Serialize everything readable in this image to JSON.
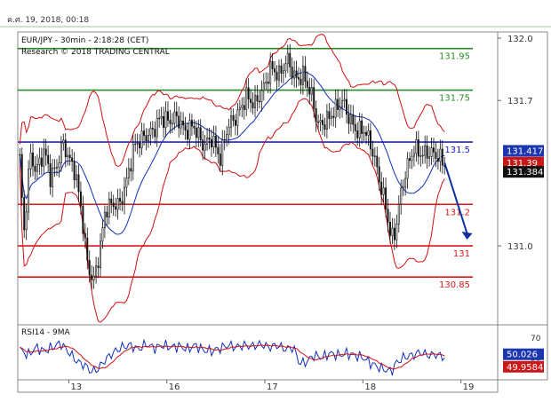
{
  "timestamp": "ค.ศ. 19, 2018, 00:18",
  "chart_data": [
    {
      "type": "candlestick",
      "title": "EUR/JPY - 30min - 2:18:28 (CET)",
      "subtitle": "Research © 2018 TRADING CENTRAL",
      "yticks": [
        "132.0",
        "131.7",
        "131.0"
      ],
      "ylim": [
        130.62,
        132.03
      ],
      "xticks": [
        {
          "label": "13",
          "x": 0
        },
        {
          "label": "16",
          "x": 48
        },
        {
          "label": "17",
          "x": 96
        },
        {
          "label": "18",
          "x": 144
        },
        {
          "label": "19",
          "x": 192
        }
      ],
      "xlim": [
        -25,
        210
      ],
      "levels": [
        {
          "label": "131.95",
          "value": 131.95,
          "color": "#2a8a2a"
        },
        {
          "label": "131.75",
          "value": 131.75,
          "color": "#2a8a2a"
        },
        {
          "label": "131.5",
          "value": 131.5,
          "color": "#2020c8"
        },
        {
          "label": "131.2",
          "value": 131.2,
          "color": "#d81818"
        },
        {
          "label": "131",
          "value": 131.0,
          "color": "#d81818"
        },
        {
          "label": "130.85",
          "value": 130.85,
          "color": "#d81818"
        }
      ],
      "price_tags": [
        {
          "label": "131.417",
          "value": 131.417,
          "color": "#1c36b0"
        },
        {
          "label": "131.39",
          "value": 131.39,
          "color": "#c81818"
        },
        {
          "label": "131.384",
          "value": 131.384,
          "color": "#111111"
        }
      ],
      "forecast_arrow": {
        "from": [
          184,
          131.4
        ],
        "to": [
          195,
          131.03
        ],
        "color": "#1030a0"
      },
      "anchors": [
        [
          -24,
          131.42
        ],
        [
          -22,
          131.05
        ],
        [
          -19,
          131.44
        ],
        [
          -16,
          131.36
        ],
        [
          -12,
          131.46
        ],
        [
          -9,
          131.33
        ],
        [
          -6,
          131.38
        ],
        [
          -3,
          131.5
        ],
        [
          0,
          131.42
        ],
        [
          3,
          131.36
        ],
        [
          6,
          131.18
        ],
        [
          9,
          130.92
        ],
        [
          12,
          130.82
        ],
        [
          15,
          130.97
        ],
        [
          18,
          131.18
        ],
        [
          21,
          131.2
        ],
        [
          25,
          131.2
        ],
        [
          28,
          131.3
        ],
        [
          32,
          131.48
        ],
        [
          36,
          131.52
        ],
        [
          41,
          131.55
        ],
        [
          45,
          131.62
        ],
        [
          49,
          131.6
        ],
        [
          53,
          131.62
        ],
        [
          57,
          131.55
        ],
        [
          61,
          131.58
        ],
        [
          66,
          131.48
        ],
        [
          70,
          131.52
        ],
        [
          74,
          131.42
        ],
        [
          78,
          131.58
        ],
        [
          82,
          131.62
        ],
        [
          87,
          131.72
        ],
        [
          91,
          131.68
        ],
        [
          95,
          131.75
        ],
        [
          99,
          131.86
        ],
        [
          103,
          131.82
        ],
        [
          107,
          131.9
        ],
        [
          111,
          131.8
        ],
        [
          115,
          131.82
        ],
        [
          119,
          131.72
        ],
        [
          122,
          131.58
        ],
        [
          126,
          131.6
        ],
        [
          130,
          131.65
        ],
        [
          134,
          131.7
        ],
        [
          137,
          131.62
        ],
        [
          141,
          131.55
        ],
        [
          145,
          131.56
        ],
        [
          149,
          131.45
        ],
        [
          152,
          131.32
        ],
        [
          155,
          131.2
        ],
        [
          157,
          131.08
        ],
        [
          159,
          131.02
        ],
        [
          162,
          131.22
        ],
        [
          165,
          131.36
        ],
        [
          169,
          131.47
        ],
        [
          173,
          131.44
        ],
        [
          177,
          131.45
        ],
        [
          181,
          131.43
        ],
        [
          185,
          131.38
        ]
      ],
      "rsi": {
        "title": "RSI14 - 9MA",
        "yticks": [
          "70",
          "50"
        ],
        "ylim": [
          28,
          82
        ],
        "tags": [
          {
            "label": "50.026",
            "value": 50.026,
            "color": "#1c36b0"
          },
          {
            "label": "49.9584",
            "value": 49.9584,
            "color": "#c81818"
          }
        ],
        "anchors": [
          [
            -24,
            58
          ],
          [
            -20,
            52
          ],
          [
            -16,
            60
          ],
          [
            -12,
            56
          ],
          [
            -8,
            60
          ],
          [
            -4,
            64
          ],
          [
            0,
            55
          ],
          [
            4,
            46
          ],
          [
            8,
            42
          ],
          [
            11,
            36
          ],
          [
            14,
            38
          ],
          [
            18,
            48
          ],
          [
            22,
            55
          ],
          [
            26,
            60
          ],
          [
            30,
            62
          ],
          [
            34,
            58
          ],
          [
            38,
            63
          ],
          [
            42,
            59
          ],
          [
            46,
            62
          ],
          [
            50,
            60
          ],
          [
            54,
            61
          ],
          [
            58,
            58
          ],
          [
            62,
            62
          ],
          [
            66,
            57
          ],
          [
            70,
            56
          ],
          [
            74,
            59
          ],
          [
            78,
            62
          ],
          [
            82,
            60
          ],
          [
            86,
            62
          ],
          [
            90,
            61
          ],
          [
            94,
            63
          ],
          [
            98,
            60
          ],
          [
            102,
            62
          ],
          [
            106,
            58
          ],
          [
            110,
            60
          ],
          [
            113,
            44
          ],
          [
            116,
            45
          ],
          [
            120,
            52
          ],
          [
            124,
            50
          ],
          [
            128,
            54
          ],
          [
            132,
            52
          ],
          [
            136,
            54
          ],
          [
            140,
            52
          ],
          [
            144,
            50
          ],
          [
            148,
            44
          ],
          [
            152,
            40
          ],
          [
            155,
            38
          ],
          [
            158,
            36
          ],
          [
            160,
            44
          ],
          [
            164,
            50
          ],
          [
            168,
            52
          ],
          [
            172,
            55
          ],
          [
            176,
            52
          ],
          [
            180,
            53
          ],
          [
            184,
            50
          ]
        ]
      }
    }
  ]
}
